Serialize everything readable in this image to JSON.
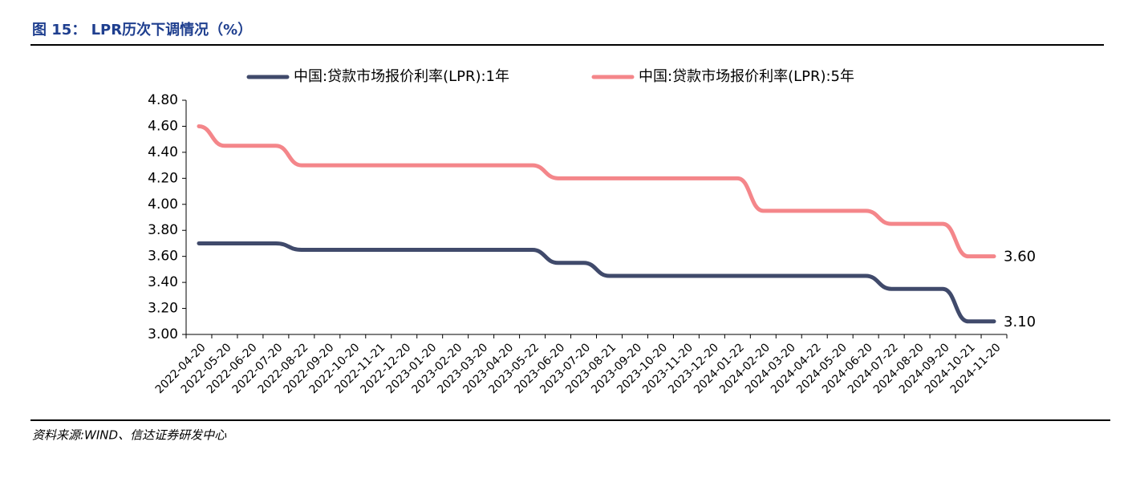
{
  "header": {
    "title": "图 15： LPR历次下调情况（%）"
  },
  "footer": {
    "source": "资料来源:WIND、信达证券研发中心"
  },
  "chart_data": {
    "type": "line",
    "categories": [
      "2022-04-20",
      "2022-05-20",
      "2022-06-20",
      "2022-07-20",
      "2022-08-22",
      "2022-09-20",
      "2022-10-20",
      "2022-11-21",
      "2022-12-20",
      "2023-01-20",
      "2023-02-20",
      "2023-03-20",
      "2023-04-20",
      "2023-05-22",
      "2023-06-20",
      "2023-07-20",
      "2023-08-21",
      "2023-09-20",
      "2023-10-20",
      "2023-11-20",
      "2023-12-20",
      "2024-01-22",
      "2024-02-20",
      "2024-03-20",
      "2024-04-22",
      "2024-05-20",
      "2024-06-20",
      "2024-07-22",
      "2024-08-20",
      "2024-09-20",
      "2024-10-21",
      "2024-11-20"
    ],
    "series": [
      {
        "name": "中国:贷款市场报价利率(LPR):1年",
        "color": "#404a6b",
        "values": [
          3.7,
          3.7,
          3.7,
          3.7,
          3.65,
          3.65,
          3.65,
          3.65,
          3.65,
          3.65,
          3.65,
          3.65,
          3.65,
          3.65,
          3.55,
          3.55,
          3.45,
          3.45,
          3.45,
          3.45,
          3.45,
          3.45,
          3.45,
          3.45,
          3.45,
          3.45,
          3.45,
          3.35,
          3.35,
          3.35,
          3.1,
          3.1
        ],
        "value_labels": [
          null,
          null,
          null,
          null,
          null,
          null,
          null,
          null,
          null,
          null,
          null,
          null,
          null,
          null,
          null,
          null,
          null,
          null,
          null,
          null,
          null,
          null,
          null,
          null,
          null,
          null,
          null,
          null,
          null,
          null,
          null,
          "3.10"
        ]
      },
      {
        "name": "中国:贷款市场报价利率(LPR):5年",
        "color": "#f4868a",
        "values": [
          4.6,
          4.45,
          4.45,
          4.45,
          4.3,
          4.3,
          4.3,
          4.3,
          4.3,
          4.3,
          4.3,
          4.3,
          4.3,
          4.3,
          4.2,
          4.2,
          4.2,
          4.2,
          4.2,
          4.2,
          4.2,
          4.2,
          3.95,
          3.95,
          3.95,
          3.95,
          3.95,
          3.85,
          3.85,
          3.85,
          3.6,
          3.6
        ],
        "value_labels": [
          null,
          null,
          null,
          null,
          null,
          null,
          null,
          null,
          null,
          null,
          null,
          null,
          null,
          null,
          null,
          null,
          null,
          null,
          null,
          null,
          null,
          null,
          null,
          null,
          null,
          null,
          null,
          null,
          null,
          null,
          null,
          "3.60"
        ]
      }
    ],
    "ylim": [
      3.0,
      4.8
    ],
    "yticks": [
      {
        "value": 3.0,
        "label": "3.00"
      },
      {
        "value": 3.2,
        "label": "3.20"
      },
      {
        "value": 3.4,
        "label": "3.40"
      },
      {
        "value": 3.6,
        "label": "3.60"
      },
      {
        "value": 3.8,
        "label": "3.80"
      },
      {
        "value": 4.0,
        "label": "4.00"
      },
      {
        "value": 4.2,
        "label": "4.20"
      },
      {
        "value": 4.4,
        "label": "4.40"
      },
      {
        "value": 4.6,
        "label": "4.60"
      },
      {
        "value": 4.8,
        "label": "4.80"
      }
    ],
    "grid": false,
    "legend": "top"
  }
}
